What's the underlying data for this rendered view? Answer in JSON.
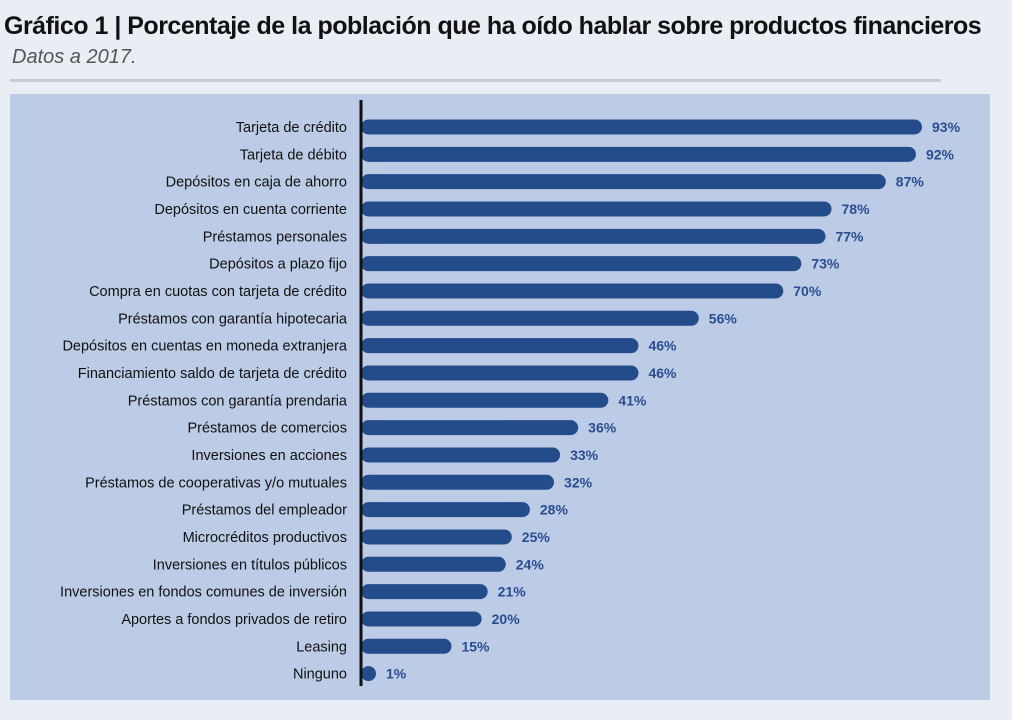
{
  "title": "Gráfico 1 | Porcentaje de la población que ha oído hablar sobre productos financieros",
  "subtitle": "Datos a 2017.",
  "colors": {
    "bar": "#244b8a",
    "value_label": "#2a4d8f",
    "panel": "#bccbe6",
    "axis": "#111111"
  },
  "chart_data": {
    "type": "bar",
    "orientation": "horizontal",
    "categories": [
      "Tarjeta de crédito",
      "Tarjeta de débito",
      "Depósitos en caja de ahorro",
      "Depósitos en cuenta corriente",
      "Préstamos personales",
      "Depósitos a plazo fijo",
      "Compra en cuotas con tarjeta de crédito",
      "Préstamos con garantía hipotecaria",
      "Depósitos en cuentas en moneda extranjera",
      "Financiamiento saldo de tarjeta de crédito",
      "Préstamos con garantía prendaria",
      "Préstamos de comercios",
      "Inversiones en acciones",
      "Préstamos de cooperativas y/o mutuales",
      "Préstamos del empleador",
      "Microcréditos productivos",
      "Inversiones en títulos públicos",
      "Inversiones en fondos comunes de inversión",
      "Aportes a fondos privados de retiro",
      "Leasing",
      "Ninguno"
    ],
    "values": [
      93,
      92,
      87,
      78,
      77,
      73,
      70,
      56,
      46,
      46,
      41,
      36,
      33,
      32,
      28,
      25,
      24,
      21,
      20,
      15,
      1
    ],
    "value_labels": [
      "93%",
      "92%",
      "87%",
      "78%",
      "77%",
      "73%",
      "70%",
      "56%",
      "46%",
      "46%",
      "41%",
      "36%",
      "33%",
      "32%",
      "28%",
      "25%",
      "24%",
      "21%",
      "20%",
      "15%",
      "1%"
    ],
    "xlim": [
      0,
      93
    ],
    "unit": "%",
    "grid": false
  }
}
